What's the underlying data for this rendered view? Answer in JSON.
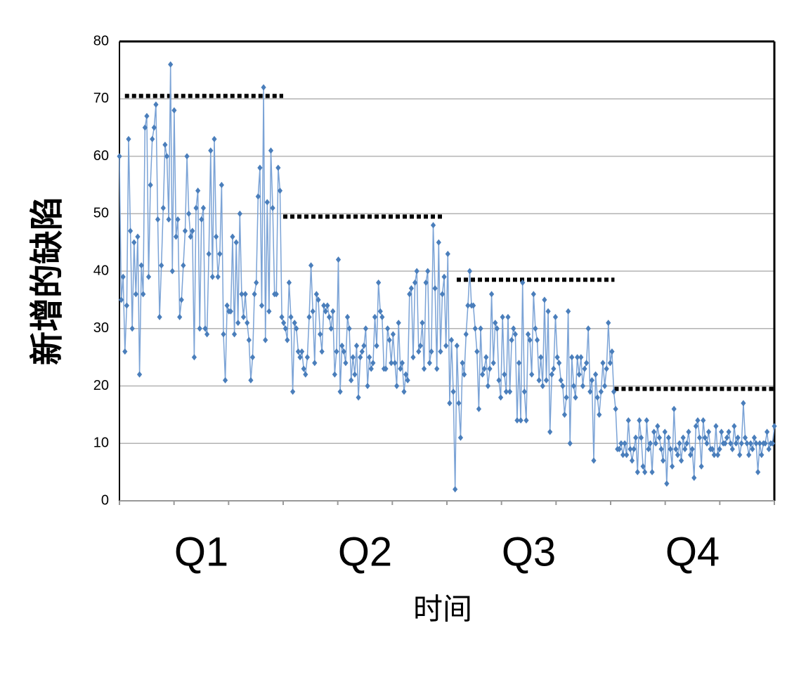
{
  "chart_data": {
    "type": "line",
    "ylabel": "新增的缺陷",
    "xlabel": "时间",
    "quarter_labels": [
      "Q1",
      "Q2",
      "Q3",
      "Q4"
    ],
    "xlim": [
      0,
      12
    ],
    "xticks": [
      0,
      1,
      2,
      3,
      4,
      5,
      6,
      7,
      8,
      9,
      10,
      11,
      12
    ],
    "ylim": [
      0,
      80
    ],
    "yticks": [
      0,
      10,
      20,
      30,
      40,
      50,
      60,
      70,
      80
    ],
    "grid": true,
    "line_color": "#7ba3d6",
    "marker_color": "#4a7ebb",
    "reference_lines": [
      {
        "value": 70.5,
        "x": [
          0.1,
          3.0
        ]
      },
      {
        "value": 49.5,
        "x": [
          3.0,
          5.95
        ]
      },
      {
        "value": 38.5,
        "x": [
          6.18,
          9.07
        ]
      },
      {
        "value": 19.5,
        "x": [
          9.07,
          12
        ]
      }
    ],
    "values": [
      60,
      35,
      39,
      26,
      34,
      63,
      47,
      30,
      45,
      36,
      46,
      22,
      41,
      36,
      65,
      67,
      39,
      55,
      63,
      65,
      69,
      49,
      32,
      41,
      51,
      62,
      60,
      49,
      76,
      40,
      68,
      46,
      49,
      32,
      35,
      41,
      47,
      60,
      50,
      46,
      47,
      25,
      51,
      54,
      30,
      49,
      51,
      30,
      29,
      43,
      61,
      39,
      63,
      46,
      39,
      43,
      55,
      29,
      21,
      34,
      33,
      33,
      46,
      29,
      45,
      31,
      50,
      36,
      32,
      36,
      31,
      28,
      21,
      25,
      36,
      38,
      53,
      58,
      34,
      72,
      28,
      52,
      33,
      61,
      51,
      36,
      36,
      58,
      54,
      32,
      31,
      30,
      28,
      38,
      32,
      19,
      31,
      30,
      26,
      25,
      26,
      23,
      22,
      25,
      32,
      41,
      33,
      24,
      36,
      35,
      29,
      26,
      34,
      33,
      34,
      32,
      30,
      33,
      22,
      26,
      42,
      19,
      27,
      26,
      24,
      32,
      30,
      21,
      25,
      22,
      27,
      18,
      25,
      26,
      27,
      30,
      20,
      25,
      23,
      24,
      32,
      27,
      38,
      33,
      32,
      23,
      23,
      30,
      28,
      24,
      29,
      24,
      20,
      31,
      23,
      24,
      19,
      22,
      21,
      36,
      37,
      25,
      38,
      40,
      26,
      27,
      31,
      23,
      38,
      40,
      24,
      26,
      48,
      37,
      23,
      45,
      26,
      36,
      39,
      27,
      43,
      17,
      28,
      19,
      2,
      27,
      17,
      11,
      24,
      22,
      29,
      34,
      40,
      34,
      34,
      30,
      26,
      16,
      30,
      22,
      23,
      25,
      20,
      23,
      36,
      24,
      31,
      30,
      21,
      18,
      32,
      22,
      19,
      32,
      19,
      28,
      30,
      29,
      14,
      24,
      14,
      38,
      19,
      14,
      29,
      28,
      22,
      36,
      30,
      28,
      21,
      25,
      20,
      35,
      21,
      33,
      12,
      22,
      23,
      32,
      25,
      24,
      21,
      20,
      15,
      18,
      33,
      10,
      25,
      20,
      18,
      25,
      22,
      25,
      20,
      23,
      24,
      30,
      19,
      21,
      7,
      22,
      18,
      15,
      19,
      24,
      20,
      23,
      31,
      24,
      26,
      19,
      16,
      9,
      9,
      10,
      8,
      10,
      8,
      14,
      9,
      7,
      9,
      11,
      5,
      14,
      11,
      6,
      5,
      14,
      9,
      10,
      5,
      12,
      10,
      13,
      11,
      9,
      7,
      12,
      3,
      11,
      9,
      6,
      16,
      9,
      8,
      10,
      7,
      11,
      9,
      10,
      12,
      8,
      9,
      4,
      13,
      14,
      11,
      6,
      14,
      11,
      10,
      12,
      9,
      9,
      8,
      13,
      8,
      9,
      12,
      10,
      10,
      11,
      12,
      10,
      9,
      13,
      10,
      11,
      8,
      10,
      17,
      11,
      10,
      8,
      10,
      9,
      11,
      10,
      5,
      10,
      8,
      10,
      10,
      12,
      9,
      10,
      10,
      13
    ]
  }
}
